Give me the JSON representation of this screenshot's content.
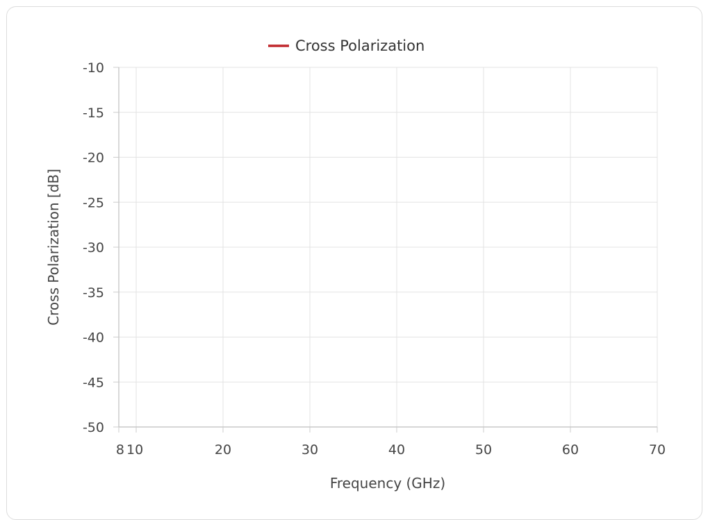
{
  "chart_data": {
    "type": "line",
    "title": "",
    "xlabel": "Frequency (GHz)",
    "ylabel": "Cross Polarization [dB]",
    "xlim": [
      8,
      70
    ],
    "ylim": [
      -50,
      -10
    ],
    "x_ticks": [
      8,
      10,
      20,
      30,
      40,
      50,
      60,
      70
    ],
    "y_ticks": [
      -10,
      -15,
      -20,
      -25,
      -30,
      -35,
      -40,
      -45,
      -50
    ],
    "grid": true,
    "legend_position": "top-center",
    "series": [
      {
        "name": "Cross Polarization",
        "color": "#c0282d",
        "x": [],
        "y": []
      }
    ]
  }
}
